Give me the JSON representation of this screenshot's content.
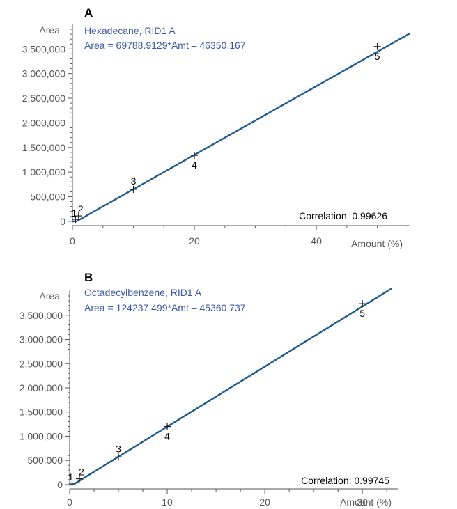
{
  "chart_data": [
    {
      "type": "scatter",
      "panel_letter": "A",
      "compound": "Hexadecane, RID1 A",
      "equation": "Area = 69788.9129*Amt – 46350.167",
      "ylabel": "Area",
      "xlabel": "Amount (%)",
      "correlation_text": "Correlation: 0.99626",
      "fit": {
        "slope": 69788.9129,
        "intercept": -46350.167
      },
      "fit_x_range": [
        0,
        55.3
      ],
      "xlim": [
        0,
        55.3
      ],
      "ylim": [
        -30000,
        3900000
      ],
      "x_ticks": [
        0,
        20,
        40
      ],
      "x_tick_labels": [
        "0",
        "20",
        "40"
      ],
      "x_minor_step": 5,
      "y_ticks": [
        0,
        500000,
        1000000,
        1500000,
        2000000,
        2500000,
        3000000,
        3500000
      ],
      "y_tick_labels": [
        "0",
        "500,000",
        "1,000,000",
        "1,500,000",
        "2,000,000",
        "2,500,000",
        "3,000,000",
        "3,500,000"
      ],
      "y_minor_step": 100000,
      "points": [
        {
          "label": "1",
          "x": 0.5,
          "y": 40000
        },
        {
          "label": "2",
          "x": 1.0,
          "y": 110000
        },
        {
          "label": "3",
          "x": 10.0,
          "y": 650000
        },
        {
          "label": "4",
          "x": 20.0,
          "y": 1340000
        },
        {
          "label": "5",
          "x": 50.0,
          "y": 3550000
        }
      ]
    },
    {
      "type": "scatter",
      "panel_letter": "B",
      "compound": "Octadecylbenzene, RID1 A",
      "equation": "Area = 124237.499*Amt – 45360.737",
      "ylabel": "Area",
      "xlabel": "Amount (%)",
      "correlation_text": "Correlation: 0.99745",
      "fit": {
        "slope": 124237.499,
        "intercept": -45360.737
      },
      "fit_x_range": [
        0,
        33.0
      ],
      "xlim": [
        0,
        33.7
      ],
      "ylim": [
        -30000,
        3900000
      ],
      "x_ticks": [
        0,
        10,
        20,
        30
      ],
      "x_tick_labels": [
        "0",
        "10",
        "20",
        "30"
      ],
      "x_minor_step": 2.5,
      "y_ticks": [
        0,
        500000,
        1000000,
        1500000,
        2000000,
        2500000,
        3000000,
        3500000
      ],
      "y_tick_labels": [
        "0",
        "500,000",
        "1,000,000",
        "1,500,000",
        "2,000,000",
        "2,500,000",
        "3,000,000",
        "3,500,000"
      ],
      "y_minor_step": 100000,
      "points": [
        {
          "label": "1",
          "x": 0.25,
          "y": 30000
        },
        {
          "label": "2",
          "x": 1.0,
          "y": 120000
        },
        {
          "label": "3",
          "x": 5.0,
          "y": 570000
        },
        {
          "label": "4",
          "x": 10.0,
          "y": 1200000
        },
        {
          "label": "5",
          "x": 30.0,
          "y": 3740000
        }
      ]
    }
  ]
}
